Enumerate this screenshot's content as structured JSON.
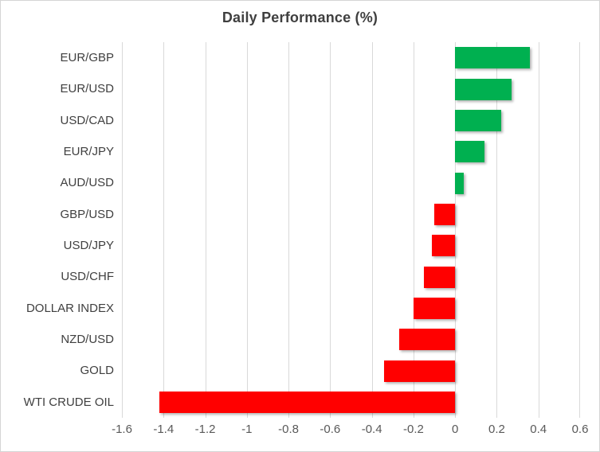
{
  "chart_data": {
    "type": "bar",
    "orientation": "horizontal",
    "title": "Daily Performance (%)",
    "categories": [
      "EUR/GBP",
      "EUR/USD",
      "USD/CAD",
      "EUR/JPY",
      "AUD/USD",
      "GBP/USD",
      "USD/JPY",
      "USD/CHF",
      "DOLLAR INDEX",
      "NZD/USD",
      "GOLD",
      "WTI CRUDE OIL"
    ],
    "values": [
      0.36,
      0.27,
      0.22,
      0.14,
      0.04,
      -0.1,
      -0.11,
      -0.15,
      -0.2,
      -0.27,
      -0.34,
      -1.42
    ],
    "x_ticks": [
      -1.6,
      -1.4,
      -1.2,
      -1,
      -0.8,
      -0.6,
      -0.4,
      -0.2,
      0,
      0.2,
      0.4,
      0.6
    ],
    "xlim": [
      -1.6,
      0.6
    ],
    "xlabel": "",
    "ylabel": "",
    "grid": true,
    "legend": false,
    "positive_color": "#00B050",
    "negative_color": "#FF0000",
    "gridline_color": "#d9d9d9",
    "title_color": "#3f3f3f",
    "axis_text_color": "#595959"
  }
}
